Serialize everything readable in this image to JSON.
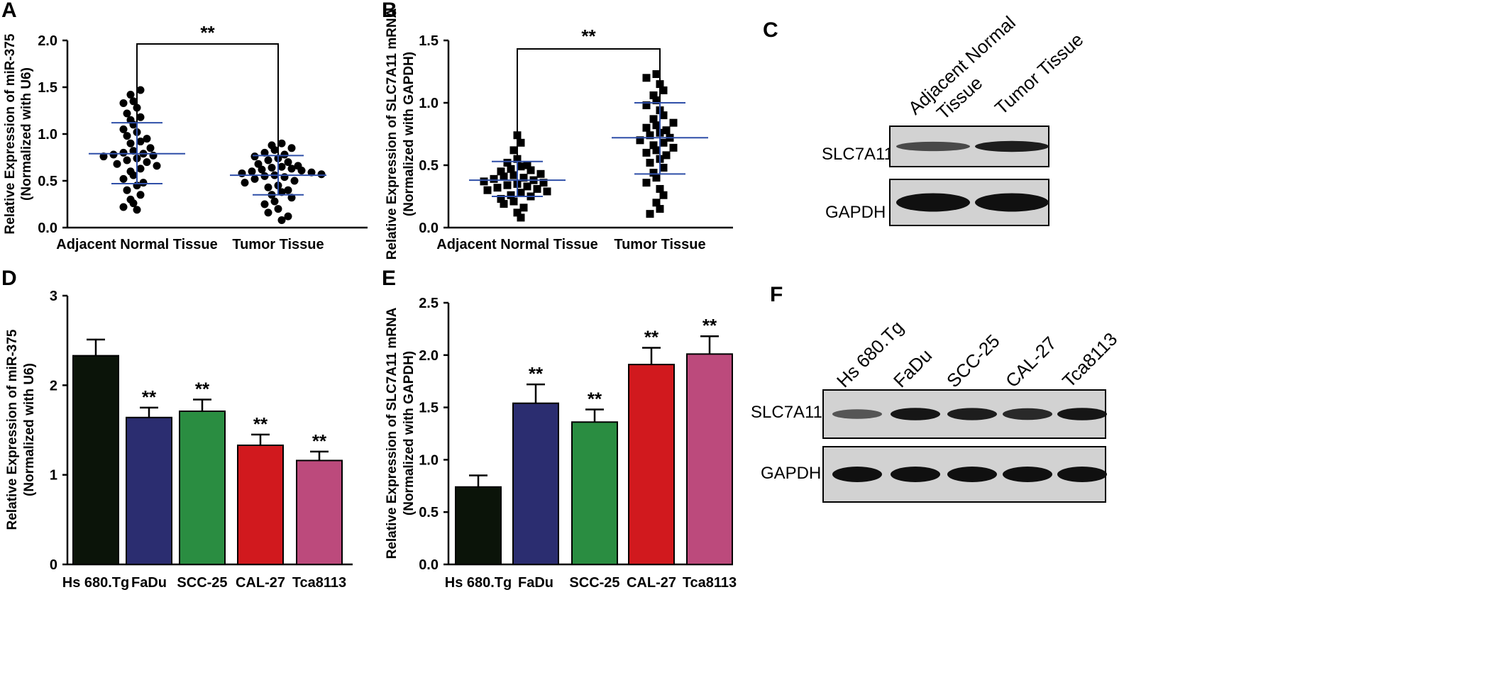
{
  "panel_labels": [
    "A",
    "B",
    "C",
    "D",
    "E",
    "F"
  ],
  "chart_data": [
    {
      "panel": "A",
      "type": "scatter",
      "ylabel_line1": "Relative Expression of miR-375",
      "ylabel_line2": "(Normalized with U6)",
      "categories": [
        "Adjacent Normal Tissue",
        "Tumor Tissue"
      ],
      "ylim": [
        0,
        2.0
      ],
      "yticks": [
        "0.0",
        "0.5",
        "1.0",
        "1.5",
        "2.0"
      ],
      "significance": "**",
      "marker": "circle",
      "summary": [
        {
          "mean": 0.79,
          "sd_low": 0.47,
          "sd_high": 1.12
        },
        {
          "mean": 0.56,
          "sd_low": 0.35,
          "sd_high": 0.77
        }
      ],
      "series": [
        {
          "values": [
            1.47,
            1.42,
            1.35,
            1.33,
            1.28,
            1.22,
            1.18,
            1.15,
            1.1,
            1.05,
            1.02,
            0.98,
            0.95,
            0.92,
            0.9,
            0.85,
            0.82,
            0.8,
            0.79,
            0.78,
            0.77,
            0.76,
            0.74,
            0.72,
            0.7,
            0.68,
            0.66,
            0.63,
            0.6,
            0.56,
            0.52,
            0.48,
            0.45,
            0.4,
            0.35,
            0.3,
            0.26,
            0.22,
            0.19
          ]
        },
        {
          "values": [
            0.9,
            0.88,
            0.85,
            0.83,
            0.8,
            0.78,
            0.76,
            0.74,
            0.72,
            0.7,
            0.68,
            0.66,
            0.65,
            0.64,
            0.63,
            0.62,
            0.61,
            0.6,
            0.59,
            0.58,
            0.57,
            0.56,
            0.55,
            0.54,
            0.52,
            0.5,
            0.48,
            0.45,
            0.43,
            0.4,
            0.38,
            0.35,
            0.32,
            0.28,
            0.25,
            0.2,
            0.16,
            0.12,
            0.08
          ]
        }
      ]
    },
    {
      "panel": "B",
      "type": "scatter",
      "ylabel_line1": "Relative Expression of SLC7A11 mRNA",
      "ylabel_line2": "(Normalized with GAPDH)",
      "categories": [
        "Adjacent Normal Tissue",
        "Tumor Tissue"
      ],
      "ylim": [
        0,
        1.5
      ],
      "yticks": [
        "0.0",
        "0.5",
        "1.0",
        "1.5"
      ],
      "significance": "**",
      "marker": "square",
      "summary": [
        {
          "mean": 0.38,
          "sd_low": 0.25,
          "sd_high": 0.53
        },
        {
          "mean": 0.72,
          "sd_low": 0.43,
          "sd_high": 1.0
        }
      ],
      "series": [
        {
          "values": [
            0.74,
            0.68,
            0.62,
            0.55,
            0.52,
            0.5,
            0.49,
            0.47,
            0.46,
            0.45,
            0.43,
            0.42,
            0.41,
            0.4,
            0.39,
            0.38,
            0.37,
            0.36,
            0.35,
            0.34,
            0.33,
            0.32,
            0.31,
            0.3,
            0.29,
            0.28,
            0.26,
            0.25,
            0.23,
            0.21,
            0.19,
            0.16,
            0.12,
            0.08
          ]
        },
        {
          "values": [
            1.23,
            1.2,
            1.15,
            1.1,
            1.06,
            1.02,
            0.98,
            0.94,
            0.9,
            0.87,
            0.84,
            0.82,
            0.8,
            0.78,
            0.76,
            0.74,
            0.72,
            0.7,
            0.68,
            0.66,
            0.64,
            0.62,
            0.6,
            0.58,
            0.55,
            0.52,
            0.48,
            0.44,
            0.4,
            0.36,
            0.31,
            0.26,
            0.2,
            0.15,
            0.11
          ]
        }
      ]
    },
    {
      "panel": "D",
      "type": "bar",
      "ylabel_line1": "Relative Expression of miR-375",
      "ylabel_line2": "(Normalized with U6)",
      "categories": [
        "Hs 680.Tg",
        "FaDu",
        "SCC-25",
        "CAL-27",
        "Tca8113"
      ],
      "values": [
        2.33,
        1.64,
        1.71,
        1.33,
        1.16
      ],
      "errors": [
        0.18,
        0.11,
        0.13,
        0.12,
        0.1
      ],
      "significance": [
        "",
        "**",
        "**",
        "**",
        "**"
      ],
      "colors": [
        "#0b1409",
        "#2b2d70",
        "#2a8d41",
        "#d1191e",
        "#bc4a7c"
      ],
      "ylim": [
        0,
        3
      ],
      "yticks": [
        "0",
        "1",
        "2",
        "3"
      ]
    },
    {
      "panel": "E",
      "type": "bar",
      "ylabel_line1": "Relative Expression of SLC7A11 mRNA",
      "ylabel_line2": "(Normalized with GAPDH)",
      "categories": [
        "Hs 680.Tg",
        "FaDu",
        "SCC-25",
        "CAL-27",
        "Tca8113"
      ],
      "values": [
        0.74,
        1.54,
        1.36,
        1.91,
        2.01
      ],
      "errors": [
        0.11,
        0.18,
        0.12,
        0.16,
        0.17
      ],
      "significance": [
        "",
        "**",
        "**",
        "**",
        "**"
      ],
      "colors": [
        "#0b1409",
        "#2b2d70",
        "#2a8d41",
        "#d1191e",
        "#bc4a7c"
      ],
      "ylim": [
        0,
        2.5
      ],
      "yticks": [
        "0.0",
        "0.5",
        "1.0",
        "1.5",
        "2.0",
        "2.5"
      ]
    }
  ],
  "blot_C": {
    "lanes": [
      "Adjacent Normal\nTissue",
      "Tumor Tissue"
    ],
    "rows": [
      "SLC7A11",
      "GAPDH"
    ],
    "band_intensity": [
      [
        0.55,
        0.9
      ],
      [
        1.0,
        1.0
      ]
    ]
  },
  "blot_F": {
    "lanes": [
      "Hs 680.Tg",
      "FaDu",
      "SCC-25",
      "CAL-27",
      "Tca8113"
    ],
    "rows": [
      "SLC7A11",
      "GAPDH"
    ],
    "band_intensity": [
      [
        0.45,
        0.95,
        0.9,
        0.8,
        0.95
      ],
      [
        1.0,
        1.0,
        1.0,
        1.0,
        1.0
      ]
    ]
  },
  "colors": {
    "axis": "#000000",
    "summary_line": "#2f4fa8",
    "blot_bg": "#d2d2d2",
    "band": "#101010"
  }
}
